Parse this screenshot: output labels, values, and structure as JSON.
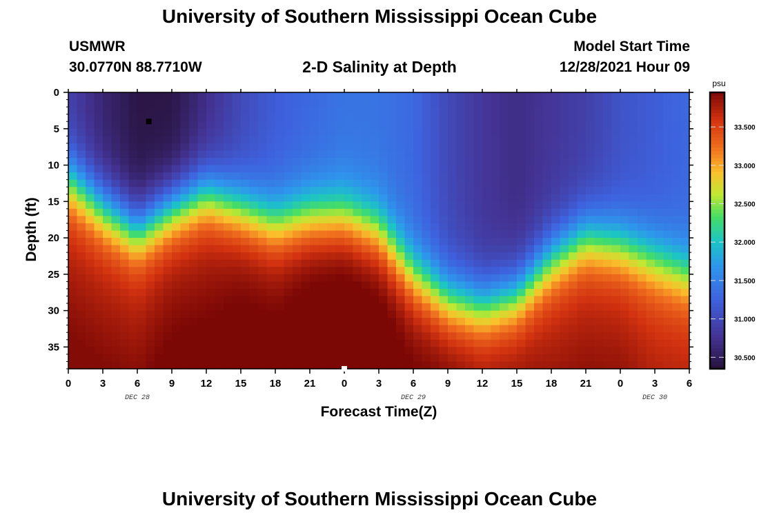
{
  "header": {
    "title": "University of Southern Mississippi Ocean Cube",
    "station_id": "USMWR",
    "coordinates": "30.0770N  88.7710W",
    "plot_title": "2-D Salinity at Depth",
    "model_start_label": "Model Start Time",
    "model_start_value": "12/28/2021 Hour 09"
  },
  "footer": {
    "title": "University of Southern Mississippi Ocean Cube"
  },
  "chart_data": {
    "type": "heatmap",
    "title": "2-D Salinity at Depth",
    "xlabel": "Forecast Time(Z)",
    "ylabel": "Depth (ft)",
    "x_ticks": [
      "0",
      "3",
      "6",
      "9",
      "12",
      "15",
      "18",
      "21",
      "0",
      "3",
      "6",
      "9",
      "12",
      "15",
      "18",
      "21",
      "0",
      "3",
      "6"
    ],
    "date_labels": [
      {
        "text": "DEC 28",
        "tick_index": 2
      },
      {
        "text": "DEC 29",
        "tick_index": 10
      },
      {
        "text": "DEC 30",
        "tick_index": 17
      }
    ],
    "xlim_hours": [
      0,
      54
    ],
    "ylim_ft": [
      0,
      38
    ],
    "y_ticks": [
      "0",
      "5",
      "10",
      "15",
      "20",
      "25",
      "30",
      "35"
    ],
    "y_tick_values": [
      0,
      5,
      10,
      15,
      20,
      25,
      30,
      35
    ],
    "colorbar": {
      "unit": "psu",
      "range": [
        30.35,
        33.95
      ],
      "ticks": [
        "30.500",
        "31.000",
        "31.500",
        "32.000",
        "32.500",
        "33.000",
        "33.500"
      ],
      "tick_values": [
        30.5,
        31.0,
        31.5,
        32.0,
        32.5,
        33.0,
        33.5
      ]
    },
    "profiles": {
      "hours": [
        0,
        3,
        6,
        9,
        12,
        15,
        18,
        21,
        24,
        27,
        30,
        33,
        36,
        39,
        42,
        45,
        48,
        51,
        54
      ],
      "surface_psu": [
        30.9,
        30.6,
        30.4,
        30.4,
        30.7,
        31.0,
        31.2,
        31.3,
        31.4,
        31.4,
        31.3,
        31.0,
        30.8,
        30.7,
        30.8,
        30.9,
        31.1,
        31.2,
        31.3
      ],
      "halocline_ft": [
        12,
        16,
        19,
        16,
        14,
        16,
        18,
        17,
        17,
        19,
        25,
        28.5,
        29.5,
        28,
        23,
        20,
        21,
        23,
        25
      ],
      "bottom_psu": [
        33.6,
        33.6,
        33.6,
        33.7,
        33.7,
        33.8,
        33.8,
        33.9,
        33.95,
        33.9,
        33.8,
        33.8,
        33.7,
        33.7,
        33.6,
        33.6,
        33.6,
        33.5,
        33.5
      ]
    },
    "markers": [
      {
        "name": "min-salinity-marker",
        "hour": 7,
        "depth_ft": 4,
        "color": "#000000"
      },
      {
        "name": "max-salinity-marker",
        "hour": 24,
        "depth_ft": 38,
        "color": "#ffffff"
      }
    ]
  }
}
